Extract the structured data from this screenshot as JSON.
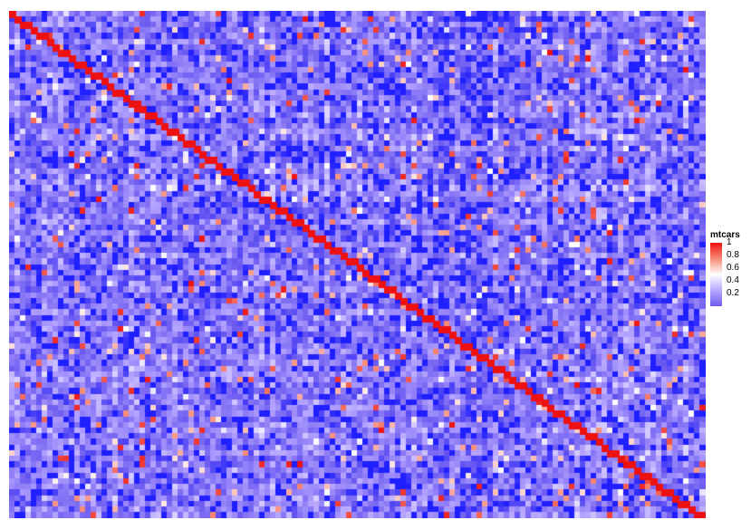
{
  "chart_data": {
    "type": "heatmap",
    "title": "",
    "xlabel": "",
    "ylabel": "",
    "grid": false,
    "dims": {
      "rows": 90,
      "cols": 128
    },
    "diagonal_value": 1,
    "generator": {
      "seed": 20240501,
      "base_range": [
        0.15,
        0.42
      ],
      "high_probability": 0.06,
      "high_range": [
        0.45,
        1.0
      ],
      "low_probability": 0.12,
      "low_value": 0.1
    },
    "color_scale": {
      "stops": [
        {
          "value": 0.1,
          "color": "#1f1fff"
        },
        {
          "value": 0.2,
          "color": "#6d5cf0"
        },
        {
          "value": 0.4,
          "color": "#b8a7ff"
        },
        {
          "value": 0.55,
          "color": "#ffffff"
        },
        {
          "value": 0.8,
          "color": "#f78a75"
        },
        {
          "value": 1.0,
          "color": "#ee1111"
        }
      ]
    },
    "legend": {
      "title": "mtcars",
      "ticks": [
        "1",
        "0.8",
        "0.6",
        "0.4",
        "0.2"
      ],
      "tick_values": [
        1,
        0.8,
        0.6,
        0.4,
        0.2
      ],
      "placement": "right"
    }
  }
}
